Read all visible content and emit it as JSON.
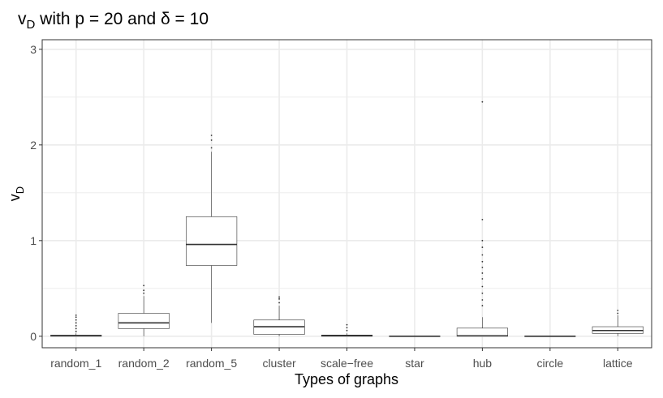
{
  "chart_data": {
    "type": "box",
    "title": {
      "base": "v",
      "subscript": "D",
      "rest": " with p = 20 and δ = 10"
    },
    "xlabel": "Types of graphs",
    "ylabel": {
      "base": "v",
      "subscript": "D"
    },
    "ylim": [
      -0.12,
      3.1
    ],
    "yticks": [
      0,
      1,
      2,
      3
    ],
    "grid": true,
    "colors": {
      "panel_border": "#333333",
      "grid": "#ebebeb",
      "box": "#333333",
      "outlier": "#333333"
    },
    "categories": [
      "random_1",
      "random_2",
      "random_5",
      "cluster",
      "scale−free",
      "star",
      "hub",
      "circle",
      "lattice"
    ],
    "boxes": [
      {
        "category": "random_1",
        "min": 0.0,
        "q1": 0.0,
        "median": 0.005,
        "q3": 0.012,
        "max": 0.03,
        "outliers": [
          0.05,
          0.08,
          0.11,
          0.14,
          0.17,
          0.2,
          0.22
        ]
      },
      {
        "category": "random_2",
        "min": 0.0,
        "q1": 0.08,
        "median": 0.14,
        "q3": 0.24,
        "max": 0.42,
        "outliers": [
          0.45,
          0.48,
          0.53
        ]
      },
      {
        "category": "random_5",
        "min": 0.14,
        "q1": 0.74,
        "median": 0.96,
        "q3": 1.25,
        "max": 1.93,
        "outliers": [
          1.97,
          2.05,
          2.1
        ]
      },
      {
        "category": "cluster",
        "min": 0.0,
        "q1": 0.02,
        "median": 0.1,
        "q3": 0.17,
        "max": 0.32,
        "outliers": [
          0.35,
          0.39,
          0.41
        ]
      },
      {
        "category": "scale−free",
        "min": 0.0,
        "q1": 0.0,
        "median": 0.005,
        "q3": 0.013,
        "max": 0.03,
        "outliers": [
          0.06,
          0.09,
          0.12
        ]
      },
      {
        "category": "star",
        "min": 0.0,
        "q1": 0.0,
        "median": 0.0,
        "q3": 0.002,
        "max": 0.004,
        "outliers": []
      },
      {
        "category": "hub",
        "min": 0.0,
        "q1": 0.0,
        "median": 0.005,
        "q3": 0.085,
        "max": 0.2,
        "outliers": [
          0.32,
          0.38,
          0.45,
          0.52,
          0.6,
          0.66,
          0.72,
          0.78,
          0.85,
          0.93,
          1.0,
          1.22,
          2.45
        ]
      },
      {
        "category": "circle",
        "min": 0.0,
        "q1": 0.0,
        "median": 0.0,
        "q3": 0.002,
        "max": 0.004,
        "outliers": []
      },
      {
        "category": "lattice",
        "min": 0.0,
        "q1": 0.03,
        "median": 0.06,
        "q3": 0.1,
        "max": 0.22,
        "outliers": [
          0.24,
          0.27
        ]
      }
    ]
  }
}
